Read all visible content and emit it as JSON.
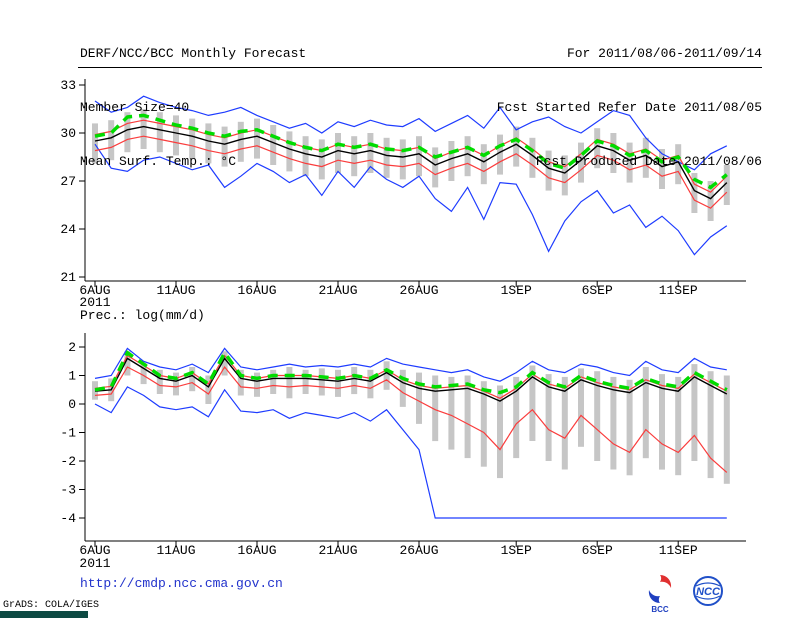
{
  "header": {
    "title": "DERF/NCC/BCC Monthly Forecast",
    "member_size": "Member Size=40",
    "for_range": "For 2011/08/06-2011/09/14",
    "fcst_start": "Fcst Started Refer Date 2011/08/05",
    "fcst_produced": "Fcst Produced Date 2011/08/06"
  },
  "footer": {
    "url": "http://cmdp.ncc.cma.gov.cn",
    "grads_credit": "GrADS: COLA/IGES",
    "bar_color": "#0d4a43",
    "logos": {
      "bcc_label": "BCC",
      "ncc_label": "NCC"
    }
  },
  "chart_data": [
    {
      "type": "line",
      "name": "temperature-chart",
      "title": "Mean Surf. Temp.: °C",
      "ylim": [
        21,
        33
      ],
      "yticks": [
        33,
        30,
        27,
        24,
        21
      ],
      "xticks": {
        "labels": [
          "6AUG",
          "11AUG",
          "16AUG",
          "21AUG",
          "26AUG",
          "1SEP",
          "6SEP",
          "11SEP"
        ],
        "day_index": [
          0,
          5,
          10,
          15,
          20,
          26,
          31,
          36
        ],
        "year": "2011"
      },
      "n_points": 40,
      "bars": {
        "color": "#c6c6c6",
        "high": [
          30.6,
          30.8,
          31.3,
          31.5,
          31.3,
          31.1,
          30.9,
          30.6,
          30.4,
          30.7,
          30.9,
          30.5,
          30.1,
          29.8,
          29.6,
          30.0,
          29.8,
          30.0,
          29.7,
          29.6,
          29.8,
          29.1,
          29.5,
          29.8,
          29.3,
          29.9,
          30.4,
          29.7,
          28.9,
          28.6,
          29.4,
          30.3,
          30.0,
          29.4,
          29.7,
          29.0,
          29.3,
          27.5,
          27.0,
          28.0
        ],
        "low": [
          28.1,
          28.3,
          28.8,
          29.0,
          28.8,
          28.6,
          28.4,
          28.1,
          27.9,
          28.2,
          28.4,
          28.0,
          27.6,
          27.3,
          27.1,
          27.5,
          27.3,
          27.5,
          27.2,
          27.1,
          27.3,
          26.6,
          27.0,
          27.3,
          26.8,
          27.4,
          27.9,
          27.2,
          26.4,
          26.1,
          26.9,
          27.8,
          27.5,
          26.9,
          27.2,
          26.5,
          26.8,
          25.0,
          24.5,
          25.5
        ]
      },
      "series": [
        {
          "name": "blue-upper-envelope",
          "color": "#1e3cff",
          "width": 1.2,
          "dash": "",
          "values": [
            32.0,
            31.3,
            31.6,
            32.3,
            31.9,
            31.6,
            31.4,
            31.1,
            31.3,
            31.6,
            31.1,
            30.7,
            30.3,
            30.6,
            30.0,
            30.7,
            30.4,
            30.8,
            30.5,
            30.4,
            30.9,
            30.1,
            30.6,
            31.1,
            30.3,
            31.6,
            30.2,
            30.7,
            31.0,
            30.4,
            30.0,
            30.7,
            31.4,
            31.1,
            29.7,
            28.7,
            28.2,
            27.7,
            28.7,
            29.2
          ]
        },
        {
          "name": "blue-lower-envelope",
          "color": "#1e3cff",
          "width": 1.2,
          "dash": "",
          "values": [
            29.3,
            27.8,
            27.6,
            28.3,
            28.5,
            28.1,
            27.7,
            28.0,
            26.6,
            27.3,
            28.1,
            27.6,
            26.9,
            27.4,
            26.1,
            27.6,
            26.6,
            27.9,
            27.1,
            26.6,
            27.3,
            25.9,
            25.1,
            26.6,
            24.6,
            26.9,
            26.8,
            24.9,
            22.6,
            24.5,
            25.7,
            26.4,
            25.0,
            25.5,
            24.1,
            24.8,
            23.9,
            22.4,
            23.5,
            24.2
          ]
        },
        {
          "name": "red-upper-band",
          "color": "#fa3c3c",
          "width": 1.2,
          "dash": "",
          "values": [
            29.9,
            30.1,
            30.6,
            30.8,
            30.6,
            30.4,
            30.2,
            29.9,
            29.7,
            30.0,
            30.2,
            29.8,
            29.4,
            29.1,
            28.9,
            29.3,
            29.1,
            29.3,
            29.0,
            28.9,
            29.1,
            28.4,
            28.8,
            29.1,
            28.6,
            29.2,
            29.7,
            29.0,
            28.2,
            27.9,
            28.7,
            29.6,
            29.3,
            28.7,
            29.0,
            28.3,
            28.6,
            26.8,
            26.3,
            27.3
          ]
        },
        {
          "name": "red-lower-band",
          "color": "#fa3c3c",
          "width": 1.2,
          "dash": "",
          "values": [
            28.9,
            29.1,
            29.6,
            29.8,
            29.6,
            29.4,
            29.2,
            28.9,
            28.7,
            29.0,
            29.2,
            28.8,
            28.4,
            28.1,
            27.9,
            28.3,
            28.1,
            28.3,
            28.0,
            27.9,
            28.1,
            27.4,
            27.8,
            28.1,
            27.6,
            28.2,
            28.7,
            28.0,
            27.2,
            26.9,
            27.7,
            28.6,
            28.3,
            27.7,
            28.0,
            27.3,
            27.6,
            25.8,
            25.3,
            26.3
          ]
        },
        {
          "name": "black-mean-line",
          "color": "#000000",
          "width": 1.4,
          "dash": "",
          "values": [
            29.5,
            29.7,
            30.2,
            30.4,
            30.2,
            30.0,
            29.8,
            29.5,
            29.3,
            29.6,
            29.8,
            29.4,
            29.0,
            28.7,
            28.5,
            28.9,
            28.7,
            28.9,
            28.6,
            28.5,
            28.7,
            28.0,
            28.4,
            28.7,
            28.2,
            28.8,
            29.3,
            28.6,
            27.8,
            27.5,
            28.3,
            29.2,
            28.9,
            28.3,
            28.6,
            27.9,
            28.2,
            26.4,
            25.9,
            26.9
          ]
        },
        {
          "name": "green-dashed-line",
          "color": "#00dc00",
          "width": 3.5,
          "dash": "10,7",
          "values": [
            29.8,
            30.0,
            31.0,
            31.1,
            30.8,
            30.5,
            30.3,
            30.0,
            29.8,
            30.1,
            30.2,
            29.8,
            29.4,
            29.1,
            28.9,
            29.3,
            29.1,
            29.3,
            29.0,
            28.9,
            29.1,
            28.5,
            28.8,
            29.1,
            28.6,
            29.2,
            29.6,
            28.9,
            28.1,
            27.8,
            28.6,
            29.5,
            29.2,
            28.6,
            28.9,
            28.2,
            28.5,
            27.1,
            26.6,
            27.4
          ]
        }
      ]
    },
    {
      "type": "line",
      "name": "precipitation-chart",
      "title": "Prec.: log(mm/d)",
      "ylim": [
        -4,
        2
      ],
      "yticks": [
        2,
        1,
        0,
        -1,
        -2,
        -3,
        -4
      ],
      "xticks": {
        "labels": [
          "6AUG",
          "11AUG",
          "16AUG",
          "21AUG",
          "26AUG",
          "1SEP",
          "6SEP",
          "11SEP"
        ],
        "day_index": [
          0,
          5,
          10,
          15,
          20,
          26,
          31,
          36
        ],
        "year": "2011"
      },
      "n_points": 40,
      "bars": {
        "color": "#c6c6c6",
        "high": [
          0.8,
          0.9,
          1.85,
          1.45,
          1.2,
          1.1,
          1.3,
          1.0,
          1.85,
          1.2,
          1.1,
          1.2,
          1.3,
          1.2,
          1.25,
          1.2,
          1.3,
          1.2,
          1.5,
          1.2,
          1.1,
          1.0,
          0.95,
          1.0,
          0.8,
          0.65,
          0.95,
          1.35,
          1.05,
          0.95,
          1.25,
          1.15,
          0.95,
          0.85,
          1.3,
          1.05,
          0.95,
          1.4,
          1.15,
          1.0
        ],
        "low": [
          0.15,
          0.1,
          1.0,
          0.7,
          0.35,
          0.3,
          0.45,
          0.0,
          1.0,
          0.3,
          0.25,
          0.35,
          0.2,
          0.35,
          0.3,
          0.25,
          0.35,
          0.2,
          0.5,
          -0.1,
          -0.7,
          -1.3,
          -1.6,
          -1.9,
          -2.2,
          -2.6,
          -1.9,
          -1.3,
          -2.0,
          -2.3,
          -1.5,
          -2.0,
          -2.3,
          -2.5,
          -1.9,
          -2.3,
          -2.5,
          -2.0,
          -2.6,
          -2.8
        ]
      },
      "series": [
        {
          "name": "blue-upper-envelope",
          "color": "#1e3cff",
          "width": 1.2,
          "dash": "",
          "values": [
            0.9,
            1.0,
            1.95,
            1.5,
            1.3,
            1.2,
            1.4,
            1.1,
            1.95,
            1.3,
            1.2,
            1.3,
            1.4,
            1.3,
            1.35,
            1.3,
            1.4,
            1.3,
            1.6,
            1.4,
            1.3,
            1.2,
            1.1,
            1.2,
            0.95,
            0.8,
            1.1,
            1.5,
            1.2,
            1.1,
            1.4,
            1.3,
            1.1,
            1.0,
            1.5,
            1.2,
            1.1,
            1.6,
            1.3,
            1.2
          ]
        },
        {
          "name": "blue-lower-envelope",
          "color": "#1e3cff",
          "width": 1.2,
          "dash": "",
          "values": [
            0.0,
            -0.3,
            0.6,
            0.3,
            -0.1,
            -0.2,
            -0.1,
            -0.45,
            0.5,
            -0.25,
            -0.3,
            -0.2,
            -0.5,
            -0.3,
            -0.4,
            -0.5,
            -0.3,
            -0.6,
            -0.2,
            -0.9,
            -1.6,
            -4.0,
            -4.0,
            -4.0,
            -4.0,
            -4.0,
            -4.0,
            -4.0,
            -4.0,
            -4.0,
            -4.0,
            -4.0,
            -4.0,
            -4.0,
            -4.0,
            -4.0,
            -4.0,
            -4.0,
            -4.0,
            -4.0
          ]
        },
        {
          "name": "red-upper-band",
          "color": "#fa3c3c",
          "width": 1.2,
          "dash": "",
          "values": [
            0.55,
            0.62,
            1.7,
            1.35,
            1.0,
            0.9,
            1.1,
            0.7,
            1.7,
            1.0,
            0.9,
            1.0,
            1.0,
            1.0,
            0.95,
            0.9,
            1.0,
            0.9,
            1.2,
            0.85,
            0.65,
            0.55,
            0.6,
            0.65,
            0.45,
            0.2,
            0.55,
            1.05,
            0.7,
            0.55,
            0.95,
            0.75,
            0.6,
            0.5,
            0.85,
            0.65,
            0.55,
            1.05,
            0.75,
            0.45
          ]
        },
        {
          "name": "red-lower-band",
          "color": "#fa3c3c",
          "width": 1.2,
          "dash": "",
          "values": [
            0.3,
            0.35,
            1.3,
            1.0,
            0.65,
            0.6,
            0.75,
            0.35,
            1.3,
            0.6,
            0.55,
            0.65,
            0.6,
            0.65,
            0.6,
            0.55,
            0.65,
            0.55,
            0.85,
            0.4,
            0.1,
            -0.2,
            -0.4,
            -0.7,
            -1.0,
            -1.6,
            -0.7,
            -0.2,
            -0.9,
            -1.2,
            -0.4,
            -0.9,
            -1.4,
            -1.7,
            -0.9,
            -1.4,
            -1.7,
            -1.1,
            -1.9,
            -2.4
          ]
        },
        {
          "name": "black-mean-line",
          "color": "#000000",
          "width": 1.4,
          "dash": "",
          "values": [
            0.45,
            0.5,
            1.6,
            1.25,
            0.9,
            0.8,
            1.0,
            0.6,
            1.6,
            0.9,
            0.8,
            0.9,
            0.9,
            0.9,
            0.85,
            0.8,
            0.9,
            0.8,
            1.1,
            0.75,
            0.55,
            0.45,
            0.5,
            0.55,
            0.35,
            0.1,
            0.45,
            0.95,
            0.6,
            0.45,
            0.85,
            0.65,
            0.5,
            0.4,
            0.75,
            0.55,
            0.45,
            0.95,
            0.65,
            0.35
          ]
        },
        {
          "name": "green-dashed-line",
          "color": "#00dc00",
          "width": 3.5,
          "dash": "10,7",
          "values": [
            0.5,
            0.6,
            1.8,
            1.4,
            1.0,
            0.9,
            1.1,
            0.7,
            1.8,
            1.0,
            0.9,
            1.0,
            1.0,
            1.0,
            0.95,
            0.9,
            1.0,
            0.9,
            1.2,
            0.9,
            0.7,
            0.6,
            0.65,
            0.7,
            0.5,
            0.4,
            0.6,
            1.1,
            0.75,
            0.6,
            1.0,
            0.8,
            0.65,
            0.55,
            0.9,
            0.7,
            0.6,
            1.1,
            0.8,
            0.5
          ]
        }
      ]
    }
  ]
}
